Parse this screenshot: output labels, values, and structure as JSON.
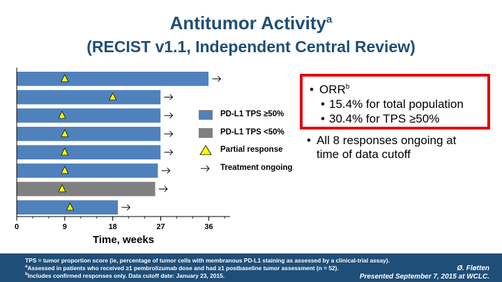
{
  "title": {
    "main": "Antitumor Activity",
    "main_sup": "a",
    "sub": "(RECIST v1.1, Independent Central Review)"
  },
  "chart_data": {
    "type": "bar",
    "orientation": "horizontal",
    "xlabel": "Time, weeks",
    "xticks": [
      0,
      9,
      18,
      27,
      36
    ],
    "xlim": [
      0,
      40
    ],
    "bars": [
      {
        "value": 36,
        "group": "high",
        "response_week": 9,
        "ongoing": true
      },
      {
        "value": 27,
        "group": "high",
        "response_week": 18,
        "ongoing": true
      },
      {
        "value": 27,
        "group": "high",
        "response_week": 8.5,
        "ongoing": true
      },
      {
        "value": 27,
        "group": "high",
        "response_week": 9,
        "ongoing": true
      },
      {
        "value": 27,
        "group": "high",
        "response_week": 9,
        "ongoing": true
      },
      {
        "value": 26.5,
        "group": "high",
        "response_week": 9,
        "ongoing": true
      },
      {
        "value": 26,
        "group": "low",
        "response_week": 8.5,
        "ongoing": true
      },
      {
        "value": 19,
        "group": "high",
        "response_week": 10,
        "ongoing": true
      }
    ],
    "colors": {
      "high": "#4f81bd",
      "low": "#808080",
      "marker": "#ffff00"
    }
  },
  "legend": {
    "high": "PD-L1 TPS ≥50%",
    "low": "PD-L1 TPS <50%",
    "partial": "Partial response",
    "ongoing": "Treatment ongoing"
  },
  "results": {
    "orr_label": "ORR",
    "orr_sup": "b",
    "orr_total": "15.4% for total population",
    "orr_tps": "30.4% for TPS ≥50%",
    "ongoing_line1": "All 8 responses ongoing at",
    "ongoing_line2": "time of data cutoff"
  },
  "footer": {
    "line1": "TPS = tumor proportion score (ie, percentage of tumor cells with membranous PD-L1 staining as assessed by a clinical-trial assay).",
    "line2_sup": "a",
    "line2": "Assessed in  patients who received ≥1 pembrolizumab dose  and had ≥1 postbaseline tumor assessment (n = 52).",
    "line3_sup": "b",
    "line3": "Includes confirmed responses only.  Data cutoff date: January 23, 2015.",
    "author": "Ø. Fløtten",
    "presented": "Presented  September 7, 2015 at WCLC."
  }
}
